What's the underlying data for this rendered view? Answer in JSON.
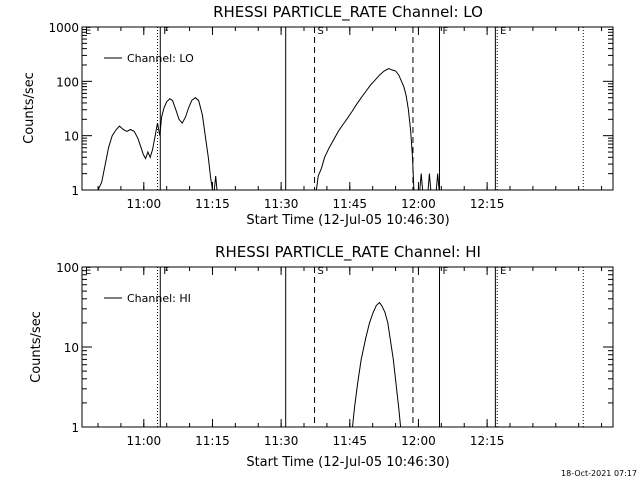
{
  "footer": "18-Oct-2021 07:17",
  "chart_data": [
    {
      "type": "line",
      "title": "RHESSI PARTICLE_RATE Channel: LO",
      "xlabel": "Start Time (12-Jul-05 10:46:30)",
      "ylabel": "Counts/sec",
      "yscale": "log",
      "ylim": [
        1,
        1000
      ],
      "xlim_minutes": [
        0,
        116
      ],
      "xtick_labels": [
        "11:00",
        "11:15",
        "11:30",
        "11:45",
        "12:00",
        "12:15"
      ],
      "ytick_labels": [
        "1",
        "10",
        "100",
        "1000"
      ],
      "legend": "Channel: LO",
      "legend_position": "top-left",
      "markers": [
        {
          "label": "E",
          "t": 0.0,
          "style": "none"
        },
        {
          "label": "F",
          "t": 17.1,
          "style": "solid"
        },
        {
          "label": "",
          "t": 16.5,
          "style": "dotted"
        },
        {
          "label": "",
          "t": 44.5,
          "style": "solid"
        },
        {
          "label": "S",
          "t": 50.8,
          "style": "dashed"
        },
        {
          "label": "",
          "t": 72.3,
          "style": "dashed"
        },
        {
          "label": "F",
          "t": 78.1,
          "style": "solid"
        },
        {
          "label": "E",
          "t": 90.7,
          "style": "dotted"
        },
        {
          "label": "",
          "t": 90.3,
          "style": "solid"
        },
        {
          "label": "",
          "t": 109.5,
          "style": "dotted"
        }
      ],
      "series": [
        {
          "segments": [
            [
              [
                3.5,
                1
              ],
              [
                4.3,
                1.4
              ],
              [
                5.1,
                3
              ],
              [
                5.8,
                6
              ],
              [
                6.6,
                10
              ],
              [
                7.5,
                13
              ],
              [
                8.2,
                15
              ],
              [
                9.0,
                13
              ],
              [
                9.8,
                12
              ],
              [
                10.6,
                13
              ],
              [
                11.4,
                12
              ],
              [
                12.2,
                9
              ],
              [
                12.9,
                6
              ],
              [
                13.4,
                4.5
              ],
              [
                13.9,
                3.8
              ],
              [
                14.4,
                5
              ],
              [
                14.9,
                4
              ],
              [
                15.4,
                5.5
              ],
              [
                16.0,
                10
              ],
              [
                16.5,
                17
              ],
              [
                17.0,
                10
              ],
              [
                17.4,
                22
              ],
              [
                17.9,
                32
              ],
              [
                18.5,
                42
              ],
              [
                19.2,
                48
              ],
              [
                19.8,
                44
              ],
              [
                20.5,
                30
              ],
              [
                21.2,
                20
              ],
              [
                21.9,
                17
              ],
              [
                22.6,
                22
              ],
              [
                23.3,
                33
              ],
              [
                24.0,
                45
              ],
              [
                24.8,
                50
              ],
              [
                25.5,
                44
              ],
              [
                26.3,
                24
              ],
              [
                27.0,
                9
              ],
              [
                27.6,
                4
              ],
              [
                28.1,
                1.7
              ],
              [
                28.5,
                1
              ]
            ],
            [
              [
                28.9,
                1
              ],
              [
                29.2,
                1.8
              ],
              [
                29.5,
                1
              ]
            ],
            [
              [
                51.2,
                1
              ],
              [
                51.6,
                1.8
              ],
              [
                52.3,
                2.5
              ],
              [
                53.0,
                4
              ],
              [
                54.0,
                6
              ],
              [
                55.0,
                8.5
              ],
              [
                56.0,
                12
              ],
              [
                57.0,
                16
              ],
              [
                58.0,
                21
              ],
              [
                59.0,
                28
              ],
              [
                60.0,
                38
              ],
              [
                61.0,
                50
              ],
              [
                62.0,
                65
              ],
              [
                63.0,
                85
              ],
              [
                64.0,
                105
              ],
              [
                65.0,
                130
              ],
              [
                66.0,
                155
              ],
              [
                67.0,
                172
              ],
              [
                67.7,
                162
              ],
              [
                68.5,
                155
              ],
              [
                69.2,
                130
              ],
              [
                69.8,
                100
              ],
              [
                70.3,
                80
              ],
              [
                70.8,
                55
              ],
              [
                71.3,
                30
              ],
              [
                71.8,
                12
              ],
              [
                72.2,
                4
              ],
              [
                72.5,
                1
              ]
            ],
            [
              [
                73.8,
                1
              ],
              [
                74.1,
                2
              ],
              [
                74.4,
                1
              ]
            ],
            [
              [
                75.6,
                1
              ],
              [
                75.9,
                2
              ],
              [
                76.2,
                1
              ]
            ],
            [
              [
                77.4,
                1
              ],
              [
                77.7,
                2
              ],
              [
                78.0,
                1
              ]
            ]
          ]
        }
      ]
    },
    {
      "type": "line",
      "title": "RHESSI PARTICLE_RATE Channel: HI",
      "xlabel": "Start Time (12-Jul-05 10:46:30)",
      "ylabel": "Counts/sec",
      "yscale": "log",
      "ylim": [
        1,
        100
      ],
      "xlim_minutes": [
        0,
        116
      ],
      "xtick_labels": [
        "11:00",
        "11:15",
        "11:30",
        "11:45",
        "12:00",
        "12:15"
      ],
      "ytick_labels": [
        "1",
        "10",
        "100"
      ],
      "legend": "Channel: HI",
      "legend_position": "top-left",
      "markers": [
        {
          "label": "E",
          "t": 0.0,
          "style": "none"
        },
        {
          "label": "F",
          "t": 17.1,
          "style": "solid"
        },
        {
          "label": "",
          "t": 16.5,
          "style": "dotted"
        },
        {
          "label": "",
          "t": 44.5,
          "style": "solid"
        },
        {
          "label": "S",
          "t": 50.8,
          "style": "dashed"
        },
        {
          "label": "",
          "t": 72.3,
          "style": "dashed"
        },
        {
          "label": "F",
          "t": 78.1,
          "style": "solid"
        },
        {
          "label": "E",
          "t": 90.7,
          "style": "dotted"
        },
        {
          "label": "",
          "t": 90.3,
          "style": "solid"
        },
        {
          "label": "",
          "t": 109.5,
          "style": "dotted"
        }
      ],
      "series": [
        {
          "segments": [
            [
              [
                59.1,
                1
              ],
              [
                59.5,
                1.7
              ],
              [
                60.2,
                3.5
              ],
              [
                61.0,
                7
              ],
              [
                62.0,
                13
              ],
              [
                62.8,
                20
              ],
              [
                63.6,
                27
              ],
              [
                64.3,
                33
              ],
              [
                65.0,
                36
              ],
              [
                65.6,
                32
              ],
              [
                66.2,
                27
              ],
              [
                66.8,
                20
              ],
              [
                67.4,
                12
              ],
              [
                68.0,
                7
              ],
              [
                68.6,
                3.5
              ],
              [
                69.2,
                1.7
              ],
              [
                69.6,
                1
              ]
            ]
          ]
        }
      ]
    }
  ]
}
